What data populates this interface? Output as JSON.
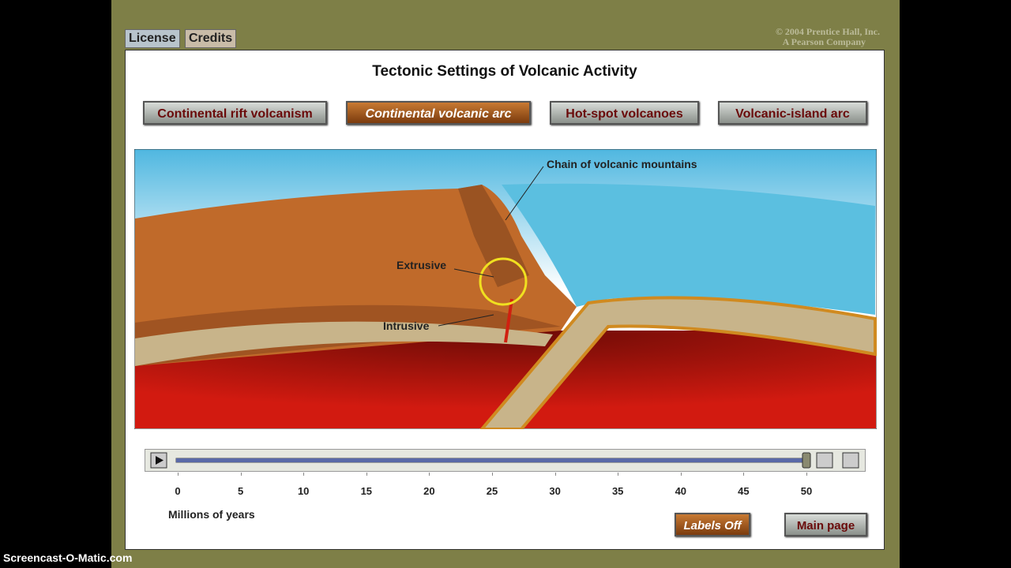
{
  "header": {
    "links": [
      "License",
      "Credits"
    ],
    "copyright": [
      "© 2004 Prentice Hall, Inc.",
      "A Pearson Company"
    ]
  },
  "title": "Tectonic Settings of Volcanic Activity",
  "tabs": [
    {
      "label": "Continental rift volcanism",
      "selected": false
    },
    {
      "label": "Continental volcanic arc",
      "selected": true
    },
    {
      "label": "Hot-spot volcanoes",
      "selected": false
    },
    {
      "label": "Volcanic-island arc",
      "selected": false
    }
  ],
  "diagram": {
    "labels": [
      "Chain of volcanic mountains",
      "Extrusive",
      "Intrusive"
    ]
  },
  "timeline": {
    "ticks": [
      0,
      5,
      10,
      15,
      20,
      25,
      30,
      35,
      40,
      45,
      50
    ],
    "position": 50,
    "axis_label": "Millions of years"
  },
  "buttons": [
    "Labels Off",
    "Main page"
  ],
  "watermark": "Screencast-O-Matic.com"
}
